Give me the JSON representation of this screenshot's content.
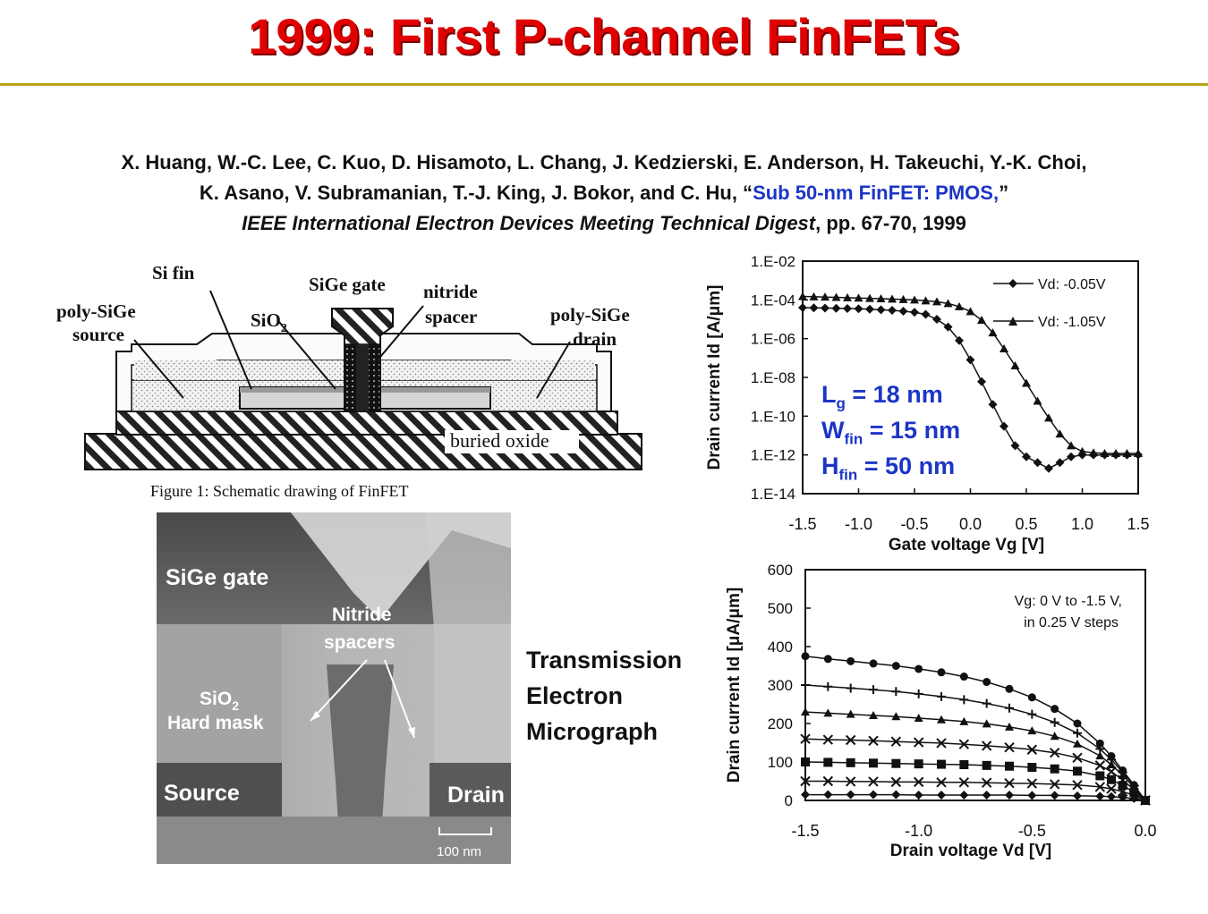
{
  "title": "1999: First P-channel FinFETs",
  "citation": {
    "line1": "X. Huang, W.-C. Lee, C. Kuo, D. Hisamoto, L. Chang, J. Kedzierski, E. Anderson, H. Takeuchi, Y.-K. Choi,",
    "line2_pre": "K. Asano, V. Subramanian, T.-J. King, J. Bokor, and C. Hu, “",
    "line2_link": "Sub 50-nm FinFET: PMOS,",
    "line2_post": "”",
    "line3_journal": "IEEE International Electron Devices Meeting Technical Digest",
    "line3_post": ", pp. 67-70, 1999"
  },
  "schematic": {
    "labels": {
      "si_fin": "Si fin",
      "sige_gate": "SiGe gate",
      "nitride": "nitride",
      "spacer": "spacer",
      "poly_source_1": "poly-SiGe",
      "poly_source_2": "source",
      "poly_drain_1": "poly-SiGe",
      "poly_drain_2": "drain",
      "sio2": "SiO",
      "sio2_sub": "2",
      "buried_oxide": "buried oxide"
    },
    "caption": "Figure 1: Schematic drawing of FinFET"
  },
  "tem": {
    "labels": {
      "sige_gate": "SiGe gate",
      "nitride_1": "Nitride",
      "nitride_2": "spacers",
      "sio2": "SiO",
      "sio2_sub": "2",
      "hard_mask": "Hard mask",
      "source": "Source",
      "drain": "Drain",
      "scale": "100 nm"
    },
    "caption_1": "Transmission",
    "caption_2": "Electron",
    "caption_3": "Micrograph"
  },
  "params": {
    "lg_main": "L",
    "lg_sub": "g",
    "lg_val": " = 18 nm",
    "wfin_main": "W",
    "wfin_sub": "fin",
    "wfin_val": " = 15 nm",
    "hfin_main": "H",
    "hfin_sub": "fin",
    "hfin_val": " = 50 nm"
  },
  "chart_data": [
    {
      "type": "line",
      "ylog": true,
      "xlabel": "Gate voltage Vg [V]",
      "ylabel": "Drain current Id [A/μm]",
      "xlim": [
        -1.5,
        1.5
      ],
      "ylim": [
        1e-14,
        0.01
      ],
      "xticks": [
        "-1.5",
        "-1.0",
        "-0.5",
        "0.0",
        "0.5",
        "1.0",
        "1.5"
      ],
      "yticks": [
        "1.E-02",
        "1.E-04",
        "1.E-06",
        "1.E-08",
        "1.E-10",
        "1.E-12",
        "1.E-14"
      ],
      "series": [
        {
          "name": "Vd: -0.05V",
          "marker": "diamond",
          "x": [
            -1.5,
            -1.4,
            -1.3,
            -1.2,
            -1.1,
            -1.0,
            -0.9,
            -0.8,
            -0.7,
            -0.6,
            -0.5,
            -0.4,
            -0.3,
            -0.2,
            -0.1,
            0.0,
            0.1,
            0.2,
            0.3,
            0.4,
            0.5,
            0.6,
            0.7,
            0.8,
            0.9,
            1.0,
            1.1,
            1.2,
            1.3,
            1.4,
            1.5
          ],
          "y": [
            4e-05,
            3.9e-05,
            3.8e-05,
            3.7e-05,
            3.6e-05,
            3.5e-05,
            3.3e-05,
            3.1e-05,
            2.9e-05,
            2.6e-05,
            2.3e-05,
            1.8e-05,
            1e-05,
            4e-06,
            8e-07,
            8e-08,
            6e-09,
            4e-10,
            3e-11,
            3e-12,
            8e-13,
            4e-13,
            2e-13,
            4e-13,
            8e-13,
            1e-12,
            1e-12,
            1e-12,
            1e-12,
            1e-12,
            1e-12
          ]
        },
        {
          "name": "Vd: -1.05V",
          "marker": "triangle",
          "x": [
            -1.5,
            -1.4,
            -1.3,
            -1.2,
            -1.1,
            -1.0,
            -0.9,
            -0.8,
            -0.7,
            -0.6,
            -0.5,
            -0.4,
            -0.3,
            -0.2,
            -0.1,
            0.0,
            0.1,
            0.2,
            0.3,
            0.4,
            0.5,
            0.6,
            0.7,
            0.8,
            0.9,
            1.0,
            1.1,
            1.2,
            1.3,
            1.4,
            1.5
          ],
          "y": [
            0.00015,
            0.000145,
            0.00014,
            0.000135,
            0.00013,
            0.000125,
            0.00012,
            0.000115,
            0.00011,
            0.000105,
            0.0001,
            9e-05,
            8e-05,
            6.5e-05,
            4.5e-05,
            2.5e-05,
            9e-06,
            2e-06,
            3e-07,
            4e-08,
            5e-09,
            6e-10,
            8e-11,
            1.2e-11,
            3e-12,
            1.5e-12,
            1.3e-12,
            1.2e-12,
            1.2e-12,
            1.2e-12,
            1.2e-12
          ]
        }
      ],
      "annotations": [
        "Lg = 18 nm",
        "Wfin = 15 nm",
        "Hfin = 50 nm"
      ],
      "legend": "top-right"
    },
    {
      "type": "line",
      "xlabel": "Drain voltage Vd [V]",
      "ylabel": "Drain current Id [μA/μm]",
      "xlim": [
        -1.5,
        0.0
      ],
      "ylim": [
        0,
        600
      ],
      "xticks": [
        "-1.5",
        "-1.0",
        "-0.5",
        "0.0"
      ],
      "yticks": [
        "600",
        "500",
        "400",
        "300",
        "200",
        "100",
        "0"
      ],
      "annotation_1": "Vg: 0 V to -1.5 V,",
      "annotation_2": "in 0.25 V steps",
      "x": [
        -1.5,
        -1.4,
        -1.3,
        -1.2,
        -1.1,
        -1.0,
        -0.9,
        -0.8,
        -0.7,
        -0.6,
        -0.5,
        -0.4,
        -0.3,
        -0.2,
        -0.15,
        -0.1,
        -0.05,
        0.0
      ],
      "series": [
        {
          "marker": "circle",
          "y": [
            375,
            368,
            362,
            356,
            350,
            342,
            333,
            322,
            308,
            290,
            268,
            238,
            200,
            148,
            115,
            78,
            40,
            0
          ]
        },
        {
          "marker": "plus",
          "y": [
            300,
            296,
            292,
            288,
            283,
            277,
            270,
            262,
            252,
            240,
            224,
            203,
            175,
            134,
            106,
            73,
            38,
            0
          ]
        },
        {
          "marker": "triangle",
          "y": [
            230,
            227,
            224,
            221,
            218,
            214,
            210,
            205,
            199,
            191,
            181,
            167,
            147,
            116,
            93,
            65,
            34,
            0
          ]
        },
        {
          "marker": "cross",
          "y": [
            160,
            158,
            157,
            155,
            153,
            151,
            149,
            146,
            142,
            138,
            132,
            124,
            111,
            91,
            75,
            53,
            28,
            0
          ]
        },
        {
          "marker": "square",
          "y": [
            100,
            99,
            98,
            97,
            96,
            95,
            94,
            93,
            91,
            89,
            86,
            82,
            76,
            64,
            54,
            39,
            21,
            0
          ]
        },
        {
          "marker": "cross",
          "y": [
            50,
            50,
            49,
            49,
            48,
            48,
            47,
            47,
            46,
            45,
            44,
            42,
            40,
            35,
            30,
            23,
            13,
            0
          ]
        },
        {
          "marker": "diamond",
          "y": [
            15,
            15,
            15,
            15,
            15,
            14,
            14,
            14,
            14,
            14,
            13,
            13,
            12,
            11,
            10,
            8,
            5,
            0
          ]
        }
      ]
    }
  ]
}
